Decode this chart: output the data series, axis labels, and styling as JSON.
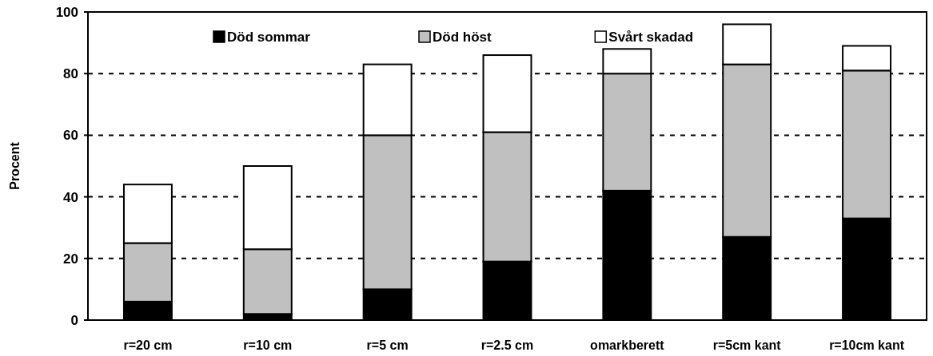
{
  "chart_data": {
    "type": "bar",
    "stacked": true,
    "ylabel": "Procent",
    "categories": [
      "r=20 cm",
      "r=10 cm",
      "r=5 cm",
      "r=2.5 cm",
      "omarkberett",
      "r=5cm kant",
      "r=10cm kant"
    ],
    "series": [
      {
        "name": "Död sommar",
        "color": "#000000",
        "values": [
          6,
          2,
          10,
          19,
          42,
          27,
          33
        ]
      },
      {
        "name": "Död höst",
        "color": "#c0c0c0",
        "values": [
          19,
          21,
          50,
          42,
          38,
          56,
          48
        ]
      },
      {
        "name": "Svårt skadad",
        "color": "#ffffff",
        "values": [
          19,
          27,
          23,
          25,
          8,
          13,
          8
        ]
      }
    ],
    "ylim": [
      0,
      100
    ],
    "yticks": [
      0,
      20,
      40,
      60,
      80,
      100
    ],
    "grid": "y",
    "legend": "top"
  }
}
